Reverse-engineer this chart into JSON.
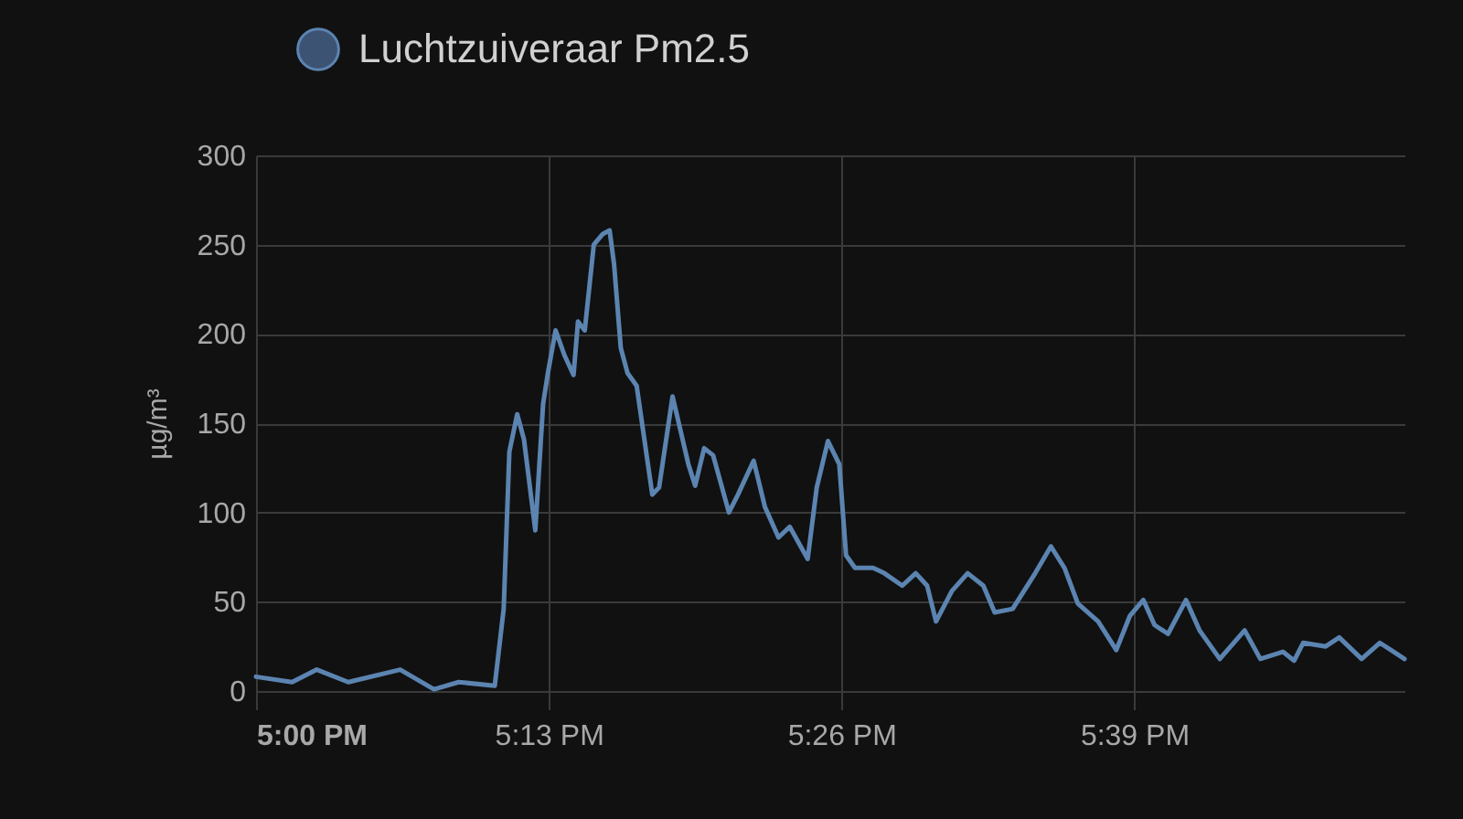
{
  "chart_data": {
    "type": "line",
    "ylabel": "µg/m³",
    "legend": "top",
    "grid": true,
    "marker": "none",
    "xlim": [
      17,
      17.85
    ],
    "xticks": [
      {
        "value": 17,
        "label": "5:00 PM"
      },
      {
        "value": 17.2167,
        "label": "5:13 PM"
      },
      {
        "value": 17.4333,
        "label": "5:26 PM"
      },
      {
        "value": 17.65,
        "label": "5:39 PM"
      }
    ],
    "ylim": [
      0,
      300
    ],
    "yticks": [
      0,
      50,
      100,
      150,
      200,
      250,
      300
    ],
    "x": [
      17.0,
      17.0267,
      17.045,
      17.0683,
      17.1067,
      17.1317,
      17.15,
      17.1767,
      17.1833,
      17.1875,
      17.1933,
      17.1983,
      17.2067,
      17.2125,
      17.216,
      17.2217,
      17.2283,
      17.235,
      17.2383,
      17.2433,
      17.25,
      17.2567,
      17.2617,
      17.265,
      17.27,
      17.275,
      17.2817,
      17.2933,
      17.2983,
      17.3083,
      17.32,
      17.325,
      17.3317,
      17.3383,
      17.35,
      17.3567,
      17.3683,
      17.3767,
      17.3867,
      17.395,
      17.4083,
      17.415,
      17.4233,
      17.4317,
      17.4367,
      17.4433,
      17.4567,
      17.465,
      17.4783,
      17.4883,
      17.4967,
      17.5033,
      17.515,
      17.5267,
      17.5383,
      17.5467,
      17.56,
      17.5767,
      17.5883,
      17.5983,
      17.6083,
      17.6233,
      17.6367,
      17.6467,
      17.6567,
      17.665,
      17.675,
      17.6883,
      17.6983,
      17.7133,
      17.7317,
      17.7433,
      17.76,
      17.7683,
      17.775,
      17.7917,
      17.8017,
      17.8183,
      17.8317,
      17.85
    ],
    "series": [
      {
        "name": "Luchtzuiveraar Pm2.5",
        "color": "#5b84b1",
        "values": [
          8,
          5,
          12,
          5,
          12,
          1,
          5,
          3,
          46,
          134,
          155,
          141,
          90,
          161,
          178,
          202,
          188,
          177,
          207,
          202,
          250,
          256,
          258,
          239,
          192,
          178,
          171,
          110,
          114,
          165,
          127,
          115,
          136,
          132,
          100,
          110,
          129,
          103,
          86,
          92,
          74,
          114,
          140,
          127,
          76,
          69,
          69,
          66,
          59,
          66,
          59,
          39,
          56,
          66,
          59,
          44,
          46,
          66,
          81,
          69,
          49,
          39,
          23,
          42,
          51,
          37,
          32,
          51,
          34,
          18,
          34,
          18,
          22,
          17,
          27,
          25,
          30,
          18,
          27,
          18
        ]
      }
    ]
  }
}
